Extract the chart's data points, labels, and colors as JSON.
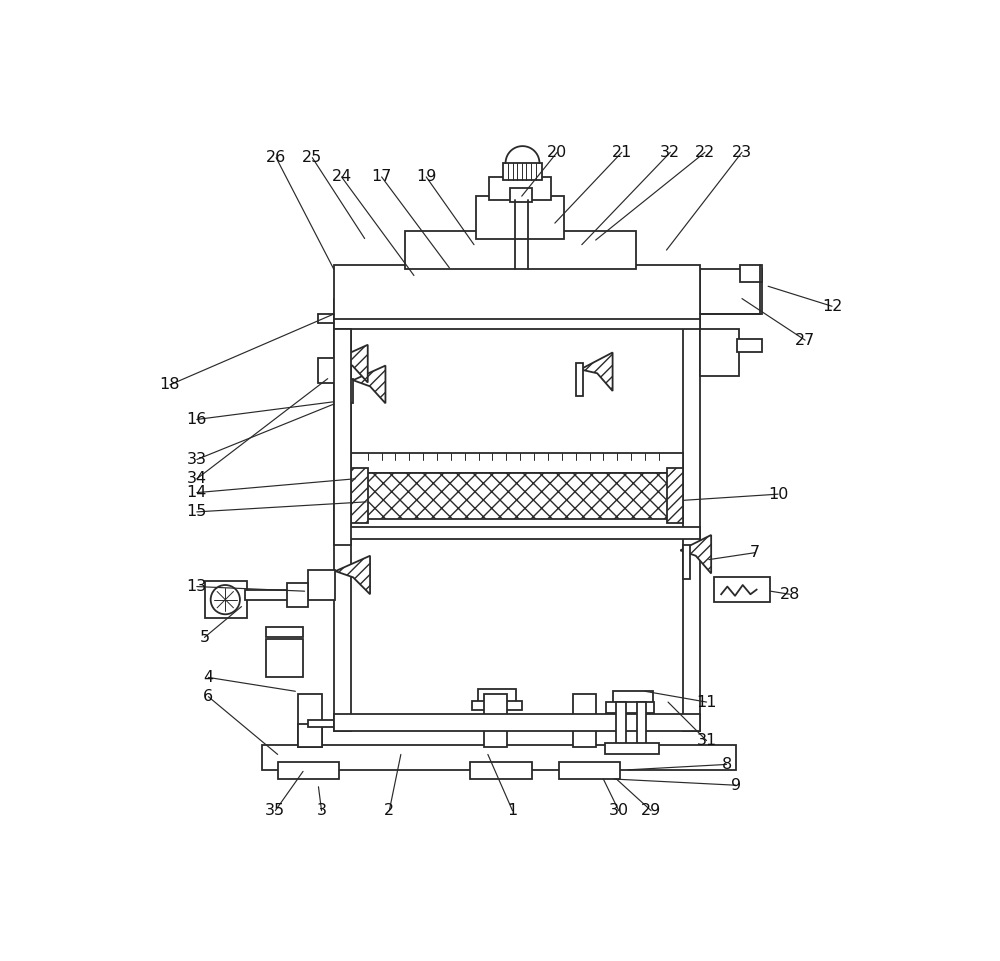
{
  "bg": "#ffffff",
  "lc": "#2a2a2a",
  "lw_main": 1.3,
  "lw_thin": 0.8,
  "fig_w": 10.0,
  "fig_h": 9.61,
  "labels": [
    [
      "1",
      500,
      903
    ],
    [
      "2",
      340,
      903
    ],
    [
      "3",
      252,
      903
    ],
    [
      "4",
      105,
      730
    ],
    [
      "5",
      100,
      678
    ],
    [
      "6",
      105,
      755
    ],
    [
      "7",
      815,
      568
    ],
    [
      "8",
      778,
      843
    ],
    [
      "9",
      790,
      870
    ],
    [
      "10",
      845,
      492
    ],
    [
      "11",
      752,
      762
    ],
    [
      "12",
      915,
      248
    ],
    [
      "13",
      90,
      612
    ],
    [
      "14",
      90,
      490
    ],
    [
      "15",
      90,
      515
    ],
    [
      "16",
      90,
      395
    ],
    [
      "17",
      330,
      80
    ],
    [
      "18",
      55,
      350
    ],
    [
      "19",
      388,
      80
    ],
    [
      "20",
      558,
      48
    ],
    [
      "21",
      642,
      48
    ],
    [
      "22",
      750,
      48
    ],
    [
      "23",
      798,
      48
    ],
    [
      "24",
      278,
      80
    ],
    [
      "25",
      240,
      55
    ],
    [
      "26",
      193,
      55
    ],
    [
      "27",
      880,
      292
    ],
    [
      "28",
      860,
      622
    ],
    [
      "29",
      680,
      903
    ],
    [
      "30",
      638,
      903
    ],
    [
      "31",
      752,
      812
    ],
    [
      "32",
      705,
      48
    ],
    [
      "33",
      90,
      447
    ],
    [
      "34",
      90,
      472
    ],
    [
      "35",
      192,
      903
    ]
  ],
  "leaders": [
    [
      "1",
      500,
      903,
      468,
      830
    ],
    [
      "2",
      340,
      903,
      355,
      830
    ],
    [
      "3",
      252,
      903,
      248,
      872
    ],
    [
      "4",
      105,
      730,
      218,
      748
    ],
    [
      "5",
      100,
      678,
      148,
      638
    ],
    [
      "6",
      105,
      755,
      195,
      830
    ],
    [
      "7",
      815,
      568,
      755,
      577
    ],
    [
      "8",
      778,
      843,
      650,
      850
    ],
    [
      "9",
      790,
      870,
      632,
      862
    ],
    [
      "10",
      845,
      492,
      722,
      500
    ],
    [
      "11",
      752,
      762,
      672,
      748
    ],
    [
      "12",
      915,
      248,
      832,
      222
    ],
    [
      "13",
      90,
      612,
      230,
      618
    ],
    [
      "14",
      90,
      490,
      296,
      472
    ],
    [
      "15",
      90,
      515,
      310,
      502
    ],
    [
      "16",
      90,
      395,
      268,
      372
    ],
    [
      "17",
      330,
      80,
      418,
      198
    ],
    [
      "18",
      55,
      350,
      268,
      258
    ],
    [
      "19",
      388,
      80,
      450,
      168
    ],
    [
      "20",
      558,
      48,
      512,
      105
    ],
    [
      "21",
      642,
      48,
      555,
      140
    ],
    [
      "22",
      750,
      48,
      608,
      162
    ],
    [
      "23",
      798,
      48,
      700,
      175
    ],
    [
      "24",
      278,
      80,
      372,
      208
    ],
    [
      "25",
      240,
      55,
      308,
      160
    ],
    [
      "26",
      193,
      55,
      268,
      200
    ],
    [
      "27",
      880,
      292,
      798,
      238
    ],
    [
      "28",
      860,
      622,
      835,
      618
    ],
    [
      "29",
      680,
      903,
      635,
      862
    ],
    [
      "30",
      638,
      903,
      618,
      862
    ],
    [
      "31",
      752,
      812,
      702,
      762
    ],
    [
      "32",
      705,
      48,
      590,
      168
    ],
    [
      "33",
      90,
      447,
      268,
      375
    ],
    [
      "34",
      90,
      472,
      260,
      342
    ],
    [
      "35",
      192,
      903,
      228,
      852
    ]
  ]
}
